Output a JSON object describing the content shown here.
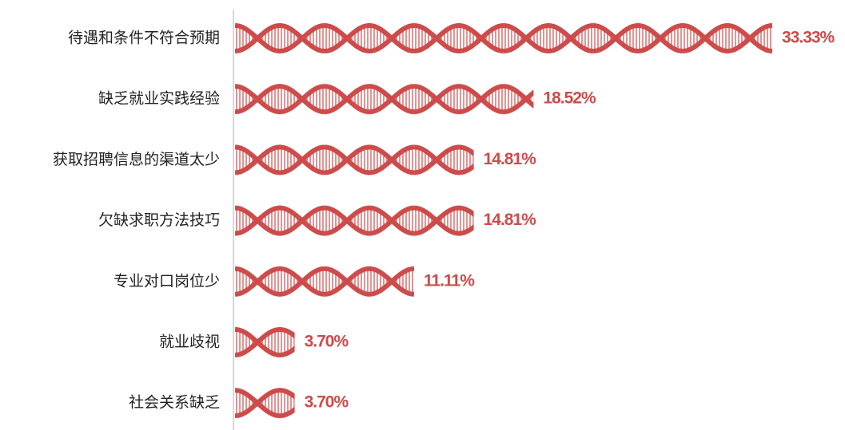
{
  "chart_data": {
    "type": "pictorial-bar",
    "categories": [
      "待遇和条件不符合预期",
      "缺乏就业实践经验",
      "获取招聘信息的渠道太少",
      "欠缺求职方法技巧",
      "专业对口岗位少",
      "就业歧视",
      "社会关系缺乏"
    ],
    "values": [
      33.33,
      18.52,
      14.81,
      14.81,
      11.11,
      3.7,
      3.7
    ],
    "value_labels": [
      "33.33%",
      "18.52%",
      "14.81%",
      "14.81%",
      "11.11%",
      "3.70%",
      "3.70%"
    ],
    "color": "#cd4b4b"
  }
}
